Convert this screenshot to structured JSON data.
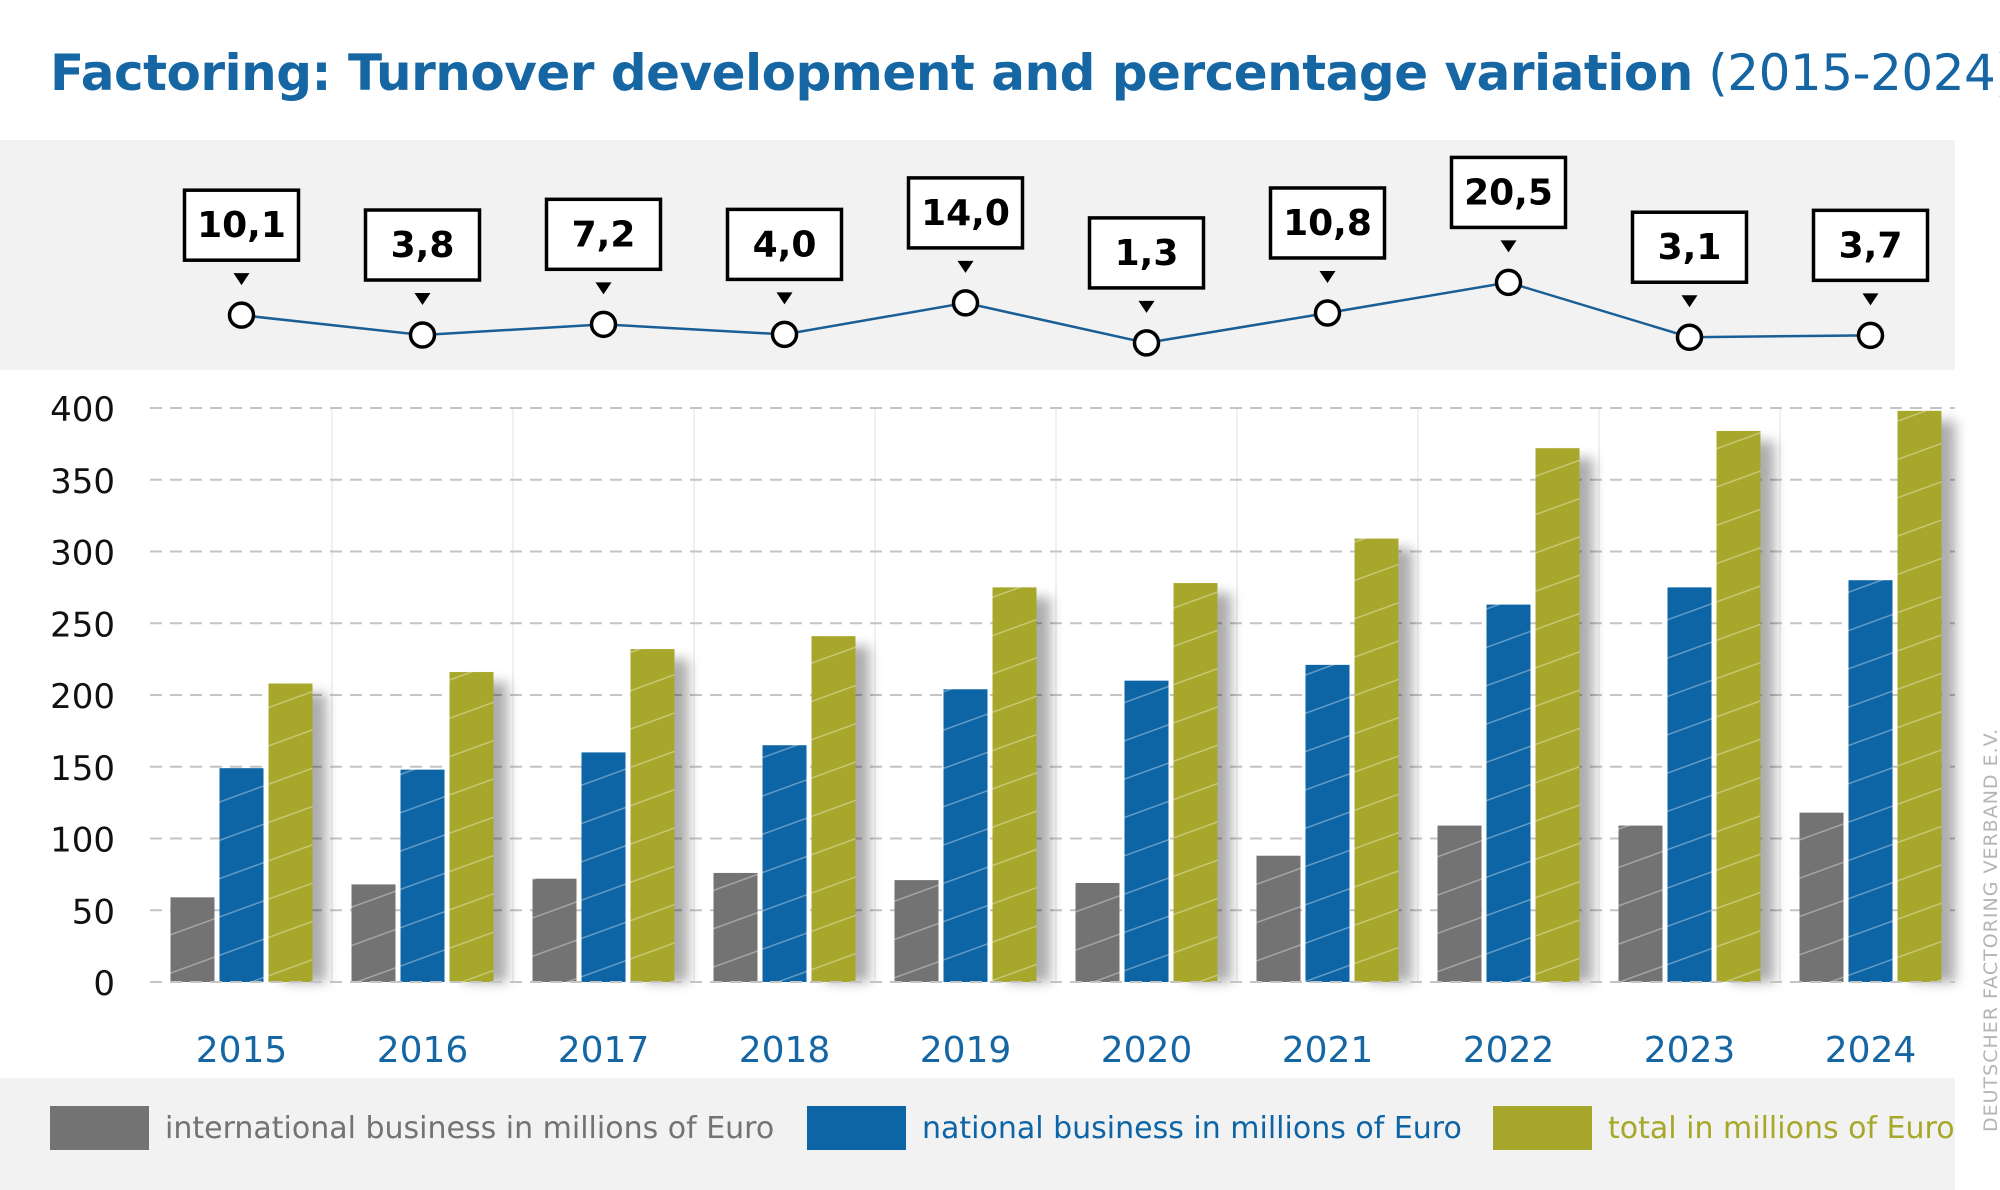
{
  "title": {
    "main": "Factoring: Turnover development and percentage variation",
    "range": "(2015-2024)"
  },
  "credit": "DEUTSCHER FACTORING VERBAND E.V.",
  "colors": {
    "international": "#737373",
    "national": "#0d65a6",
    "total": "#a7a82b",
    "title": "#1666a3",
    "line": "#1a5e96"
  },
  "chart_data": [
    {
      "type": "line",
      "x": [
        "2015",
        "2016",
        "2017",
        "2018",
        "2019",
        "2020",
        "2021",
        "2022",
        "2023",
        "2024"
      ],
      "values": [
        10.1,
        3.8,
        7.2,
        4.0,
        14.0,
        1.3,
        10.8,
        20.5,
        3.1,
        3.7
      ],
      "labels": [
        "10,1",
        "3,8",
        "7,2",
        "4,0",
        "14,0",
        "1,3",
        "10,8",
        "20,5",
        "3,1",
        "3,7"
      ]
    },
    {
      "type": "bar",
      "categories": [
        "2015",
        "2016",
        "2017",
        "2018",
        "2019",
        "2020",
        "2021",
        "2022",
        "2023",
        "2024"
      ],
      "yticks": [
        "0",
        "50",
        "100",
        "150",
        "200",
        "250",
        "300",
        "350",
        "400"
      ],
      "ylim": [
        0,
        400
      ],
      "grid": true,
      "legend_position": "bottom",
      "series": [
        {
          "name": "international business in millions of Euro",
          "values": [
            59,
            68,
            72,
            76,
            71,
            69,
            88,
            109,
            109,
            118
          ]
        },
        {
          "name": "national business in millions of Euro",
          "values": [
            149,
            148,
            160,
            165,
            204,
            210,
            221,
            263,
            275,
            280
          ]
        },
        {
          "name": "total in millions of Euro",
          "values": [
            208,
            216,
            232,
            241,
            275,
            278,
            309,
            372,
            384,
            398
          ]
        }
      ]
    }
  ]
}
